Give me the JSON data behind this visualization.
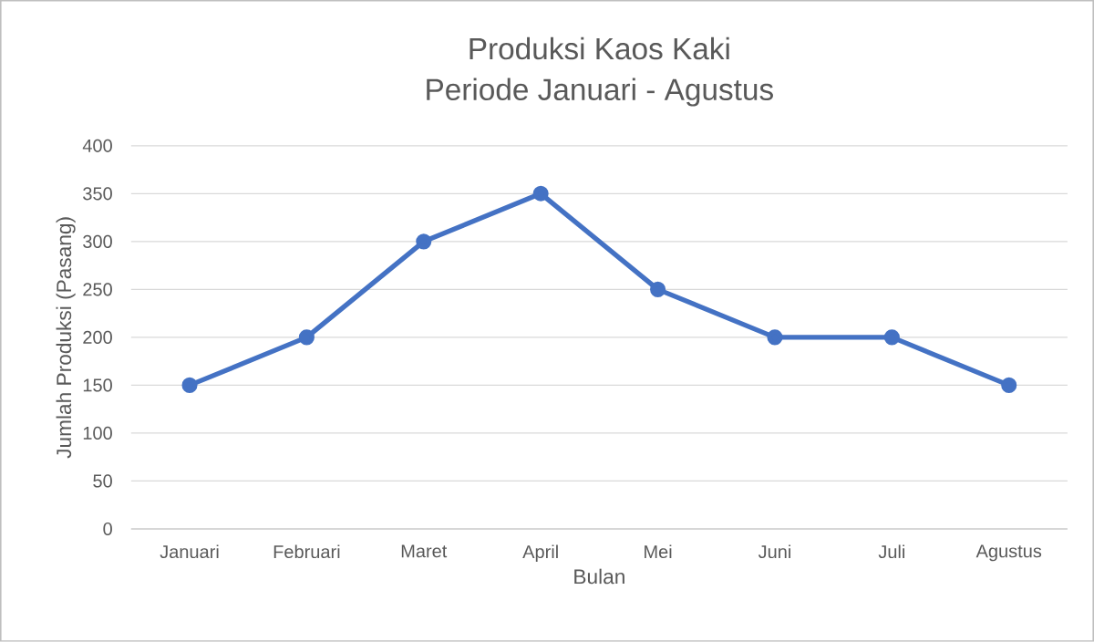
{
  "chart_data": {
    "type": "line",
    "title": "Produksi Kaos Kaki",
    "subtitle": "Periode Januari - Agustus",
    "xlabel": "Bulan",
    "ylabel": "Jumlah Produksi (Pasang)",
    "categories": [
      "Januari",
      "Februari",
      "Maret",
      "April",
      "Mei",
      "Juni",
      "Juli",
      "Agustus"
    ],
    "series": [
      {
        "color": "#4472c4",
        "values": [
          150,
          200,
          300,
          350,
          250,
          200,
          200,
          150
        ]
      }
    ],
    "ylim": [
      0,
      400
    ],
    "yticks": [
      0,
      50,
      100,
      150,
      200,
      250,
      300,
      350,
      400
    ],
    "grid": "y",
    "marker": "circle",
    "line_style": "solid"
  }
}
